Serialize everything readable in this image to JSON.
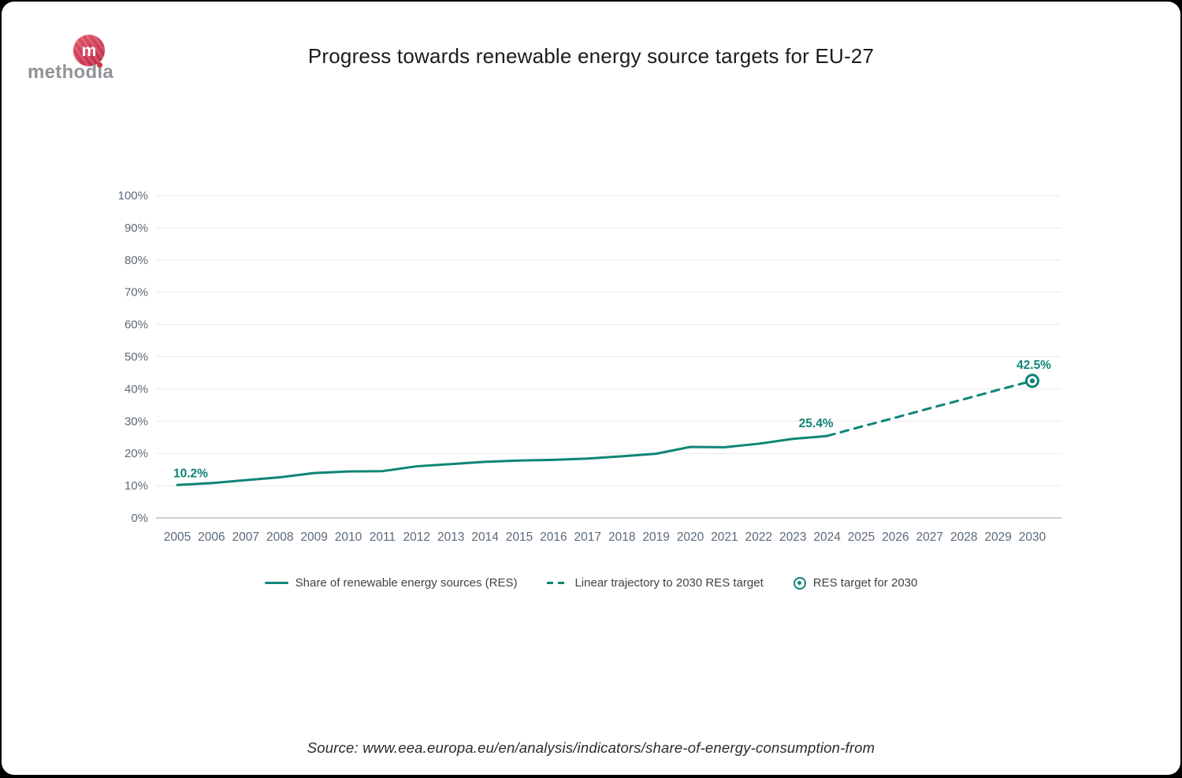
{
  "page": {
    "background": "#000000",
    "card_background": "#ffffff"
  },
  "logo": {
    "word": "methodia",
    "monogram": "m",
    "circle_color_top": "#e25a6b",
    "circle_color_bottom": "#bf2742",
    "word_color": "#8f9499",
    "i_dot_color": "#cf3349"
  },
  "header": {
    "title": "Progress towards renewable energy source targets for EU-27"
  },
  "colors": {
    "accent": "#0e8576",
    "tick_label": "#5a6a7a",
    "gridline": "#e9e9e9",
    "axis_line": "#b9bfc6",
    "legend_text": "#3f4347",
    "title_text": "#1c1c1c"
  },
  "chart_data": {
    "type": "line",
    "title": "Progress towards renewable energy source targets for EU-27",
    "xlabel": "",
    "ylabel": "",
    "ylim": [
      0,
      100
    ],
    "grid": true,
    "legend_position": "bottom",
    "ytick_labels": [
      "0%",
      "10%",
      "20%",
      "30%",
      "40%",
      "50%",
      "60%",
      "70%",
      "80%",
      "90%",
      "100%"
    ],
    "xtick_labels": [
      "2005",
      "2006",
      "2007",
      "2008",
      "2009",
      "2010",
      "2011",
      "2012",
      "2013",
      "2014",
      "2015",
      "2016",
      "2017",
      "2018",
      "2019",
      "2020",
      "2021",
      "2022",
      "2023",
      "2024",
      "2025",
      "2026",
      "2027",
      "2028",
      "2029",
      "2030"
    ],
    "series": [
      {
        "name": "Share of renewable energy sources (RES)",
        "line_style": "solid",
        "color": "#0e8576",
        "x": [
          2005,
          2006,
          2007,
          2008,
          2009,
          2010,
          2011,
          2012,
          2013,
          2014,
          2015,
          2016,
          2017,
          2018,
          2019,
          2020,
          2021,
          2022,
          2023,
          2024
        ],
        "values": [
          10.2,
          10.8,
          11.7,
          12.6,
          13.9,
          14.4,
          14.5,
          16.0,
          16.7,
          17.4,
          17.8,
          18.0,
          18.4,
          19.1,
          19.9,
          22.0,
          21.9,
          23.0,
          24.5,
          25.4
        ]
      },
      {
        "name": "Linear trajectory to 2030 RES target",
        "line_style": "dashed",
        "color": "#0e8576",
        "x": [
          2024,
          2025,
          2026,
          2027,
          2028,
          2029,
          2030
        ],
        "values": [
          25.4,
          28.3,
          31.1,
          34.0,
          36.8,
          39.7,
          42.5
        ]
      },
      {
        "name": "RES target for 2030",
        "line_style": "marker",
        "color": "#0e8576",
        "x": [
          2030
        ],
        "values": [
          42.5
        ]
      }
    ],
    "annotations": [
      {
        "text": "10.2%",
        "year": 2005,
        "value": 10.2,
        "align": "start"
      },
      {
        "text": "25.4%",
        "year": 2024,
        "value": 25.4,
        "align": "end"
      },
      {
        "text": "42.5%",
        "year": 2030,
        "value": 42.5,
        "align": "middle"
      }
    ]
  },
  "legend": {
    "items": [
      {
        "label": "Share of renewable energy sources (RES)",
        "marker": "solid-line"
      },
      {
        "label": "Linear trajectory to 2030 RES target",
        "marker": "dashed-line"
      },
      {
        "label": "RES target for 2030",
        "marker": "circle-dot"
      }
    ]
  },
  "source": {
    "text": "Source: www.eea.europa.eu/en/analysis/indicators/share-of-energy-consumption-from"
  }
}
